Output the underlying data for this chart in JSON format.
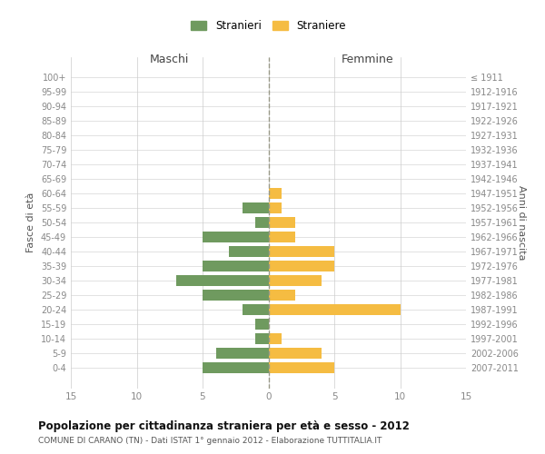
{
  "age_groups": [
    "100+",
    "95-99",
    "90-94",
    "85-89",
    "80-84",
    "75-79",
    "70-74",
    "65-69",
    "60-64",
    "55-59",
    "50-54",
    "45-49",
    "40-44",
    "35-39",
    "30-34",
    "25-29",
    "20-24",
    "15-19",
    "10-14",
    "5-9",
    "0-4"
  ],
  "birth_years": [
    "≤ 1911",
    "1912-1916",
    "1917-1921",
    "1922-1926",
    "1927-1931",
    "1932-1936",
    "1937-1941",
    "1942-1946",
    "1947-1951",
    "1952-1956",
    "1957-1961",
    "1962-1966",
    "1967-1971",
    "1972-1976",
    "1977-1981",
    "1982-1986",
    "1987-1991",
    "1992-1996",
    "1997-2001",
    "2002-2006",
    "2007-2011"
  ],
  "maschi": [
    0,
    0,
    0,
    0,
    0,
    0,
    0,
    0,
    0,
    2,
    1,
    5,
    3,
    5,
    7,
    5,
    2,
    1,
    1,
    4,
    5
  ],
  "femmine": [
    0,
    0,
    0,
    0,
    0,
    0,
    0,
    0,
    1,
    1,
    2,
    2,
    5,
    5,
    4,
    2,
    10,
    0,
    1,
    4,
    5
  ],
  "color_maschi": "#6f9a5f",
  "color_femmine": "#f5bc42",
  "title": "Popolazione per cittadinanza straniera per età e sesso - 2012",
  "subtitle": "COMUNE DI CARANO (TN) - Dati ISTAT 1° gennaio 2012 - Elaborazione TUTTITALIA.IT",
  "xlabel_left": "Maschi",
  "xlabel_right": "Femmine",
  "ylabel_left": "Fasce di età",
  "ylabel_right": "Anni di nascita",
  "legend_stranieri": "Stranieri",
  "legend_straniere": "Straniere",
  "xlim": 15,
  "background_color": "#ffffff",
  "grid_color": "#cccccc",
  "axis_label_color": "#555555",
  "tick_label_color": "#888888"
}
